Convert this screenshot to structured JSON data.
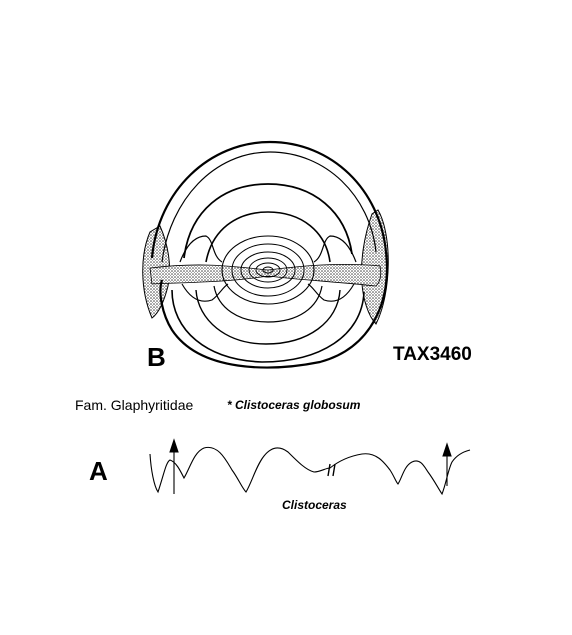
{
  "figure_b": {
    "letter": "B"
  },
  "specimen": {
    "id": "TAX3460"
  },
  "taxonomy": {
    "family": "Fam. Glaphyritidae",
    "species": "* Clistoceras globosum"
  },
  "figure_a": {
    "letter": "A",
    "caption": "Clistoceras"
  },
  "colors": {
    "ink": "#000000",
    "stipple": "#555555",
    "background": "#ffffff"
  }
}
